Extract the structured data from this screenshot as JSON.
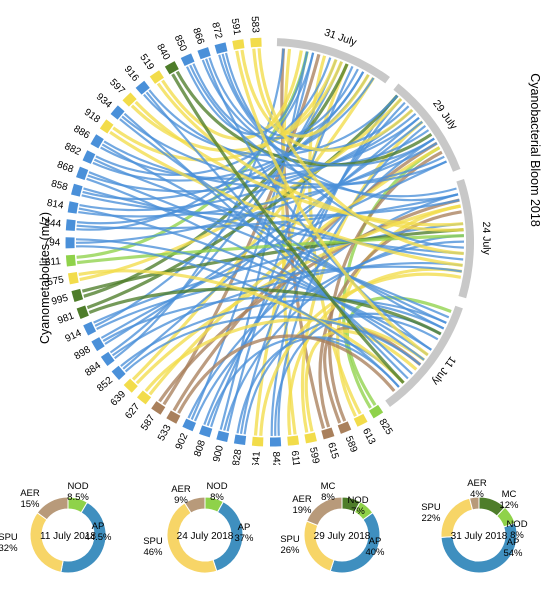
{
  "colors": {
    "AP": "#4a90d9",
    "SPU": "#f2dc4a",
    "AER": "#a9805c",
    "NOD": "#8fd24a",
    "MC": "#4e7d2a",
    "date_arc": "#c8c8c8",
    "donut_AP": "#3f8fbf",
    "donut_SPU": "#f7d567",
    "donut_AER": "#b89a7a",
    "donut_NOD": "#8fd24a",
    "donut_MC": "#4e7d2a"
  },
  "chart_data": [
    {
      "type": "chord",
      "axis_left_label": "Cyanometabolites (m/z)",
      "axis_right_label": "Cyanobacterial Bloom 2018",
      "dates": [
        "11 July",
        "24 July",
        "29 July",
        "31 July"
      ],
      "metabolites": [
        {
          "mz": "825",
          "class": "NOD"
        },
        {
          "mz": "613",
          "class": "SPU"
        },
        {
          "mz": "589",
          "class": "AER"
        },
        {
          "mz": "615",
          "class": "AER"
        },
        {
          "mz": "599",
          "class": "SPU"
        },
        {
          "mz": "611",
          "class": "SPU"
        },
        {
          "mz": "842",
          "class": "AP"
        },
        {
          "mz": "641",
          "class": "SPU"
        },
        {
          "mz": "828",
          "class": "AP"
        },
        {
          "mz": "900",
          "class": "AP"
        },
        {
          "mz": "808",
          "class": "AP"
        },
        {
          "mz": "902",
          "class": "AP"
        },
        {
          "mz": "533",
          "class": "AER"
        },
        {
          "mz": "587",
          "class": "AER"
        },
        {
          "mz": "627",
          "class": "SPU"
        },
        {
          "mz": "639",
          "class": "SPU"
        },
        {
          "mz": "852",
          "class": "AP"
        },
        {
          "mz": "884",
          "class": "AP"
        },
        {
          "mz": "898",
          "class": "AP"
        },
        {
          "mz": "914",
          "class": "AP"
        },
        {
          "mz": "981",
          "class": "MC"
        },
        {
          "mz": "995",
          "class": "MC"
        },
        {
          "mz": "575",
          "class": "SPU"
        },
        {
          "mz": "811",
          "class": "NOD"
        },
        {
          "mz": "794",
          "class": "AP"
        },
        {
          "mz": "844",
          "class": "AP"
        },
        {
          "mz": "814",
          "class": "AP"
        },
        {
          "mz": "858",
          "class": "AP"
        },
        {
          "mz": "868",
          "class": "AP"
        },
        {
          "mz": "882",
          "class": "AP"
        },
        {
          "mz": "886",
          "class": "AP"
        },
        {
          "mz": "918",
          "class": "SPU"
        },
        {
          "mz": "934",
          "class": "AP"
        },
        {
          "mz": "597",
          "class": "SPU"
        },
        {
          "mz": "916",
          "class": "AP"
        },
        {
          "mz": "519",
          "class": "SPU"
        },
        {
          "mz": "840",
          "class": "MC"
        },
        {
          "mz": "850",
          "class": "AP"
        },
        {
          "mz": "866",
          "class": "AP"
        },
        {
          "mz": "872",
          "class": "AP"
        },
        {
          "mz": "591",
          "class": "SPU"
        },
        {
          "mz": "583",
          "class": "SPU"
        }
      ]
    },
    {
      "type": "pie",
      "title": "11 July 2018",
      "slices": [
        {
          "label": "AP",
          "pct_label": "44.5%",
          "value": 44.5
        },
        {
          "label": "SPU",
          "pct_label": "32%",
          "value": 32
        },
        {
          "label": "AER",
          "pct_label": "15%",
          "value": 15
        },
        {
          "label": "NOD",
          "pct_label": "8.5%",
          "value": 8.5
        }
      ]
    },
    {
      "type": "pie",
      "title": "24 July 2018",
      "slices": [
        {
          "label": "AP",
          "pct_label": "37%",
          "value": 37
        },
        {
          "label": "SPU",
          "pct_label": "46%",
          "value": 46
        },
        {
          "label": "AER",
          "pct_label": "9%",
          "value": 9
        },
        {
          "label": "NOD",
          "pct_label": "8%",
          "value": 8
        }
      ]
    },
    {
      "type": "pie",
      "title": "29 July 2018",
      "slices": [
        {
          "label": "AP",
          "pct_label": "40%",
          "value": 40
        },
        {
          "label": "SPU",
          "pct_label": "26%",
          "value": 26
        },
        {
          "label": "AER",
          "pct_label": "19%",
          "value": 19
        },
        {
          "label": "MC",
          "pct_label": "8%",
          "value": 8
        },
        {
          "label": "NOD",
          "pct_label": "7%",
          "value": 7
        }
      ]
    },
    {
      "type": "pie",
      "title": "31 July 2018",
      "slices": [
        {
          "label": "AP",
          "pct_label": "54%",
          "value": 54
        },
        {
          "label": "SPU",
          "pct_label": "22%",
          "value": 22
        },
        {
          "label": "AER",
          "pct_label": "4%",
          "value": 4
        },
        {
          "label": "MC",
          "pct_label": "12%",
          "value": 12
        },
        {
          "label": "NOD",
          "pct_label": "8%",
          "value": 8
        }
      ]
    }
  ]
}
